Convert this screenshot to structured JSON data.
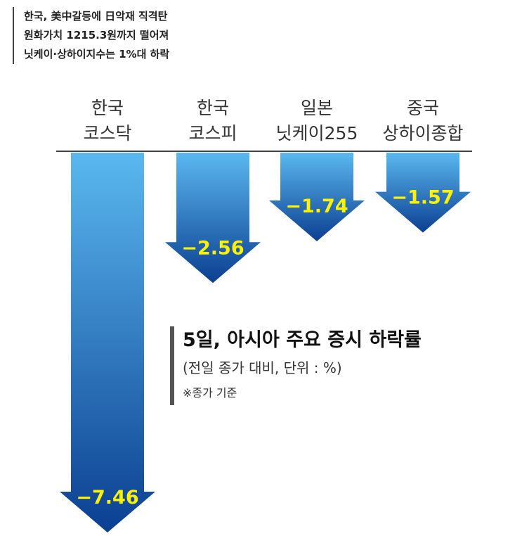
{
  "headline": {
    "lines": [
      "한국, 美中갈등에 日악재 직격탄",
      "원화가치 1215.3원까지 떨어져",
      "닛케이·상하이지수는 1%대 하락"
    ]
  },
  "legend": {
    "title": "5일, 아시아 주요 증시 하락률",
    "subtitle": "(전일 종가 대비, 단위 : %)",
    "note": "※종가 기준"
  },
  "chart_data": {
    "type": "bar",
    "title": "5일, 아시아 주요 증시 하락률",
    "categories": [
      [
        "한국",
        "코스닥"
      ],
      [
        "한국",
        "코스피"
      ],
      [
        "일본",
        "닛케이255"
      ],
      [
        "중국",
        "상하이종합"
      ]
    ],
    "values": [
      -7.46,
      -2.56,
      -1.74,
      -1.57
    ],
    "value_labels": [
      "−7.46",
      "−2.56",
      "−1.74",
      "−1.57"
    ],
    "unit": "%",
    "colors": {
      "bar_top": "#5ab8ef",
      "bar_bottom": "#0b3f91",
      "label": "#fff200",
      "baseline": "#444444"
    }
  }
}
